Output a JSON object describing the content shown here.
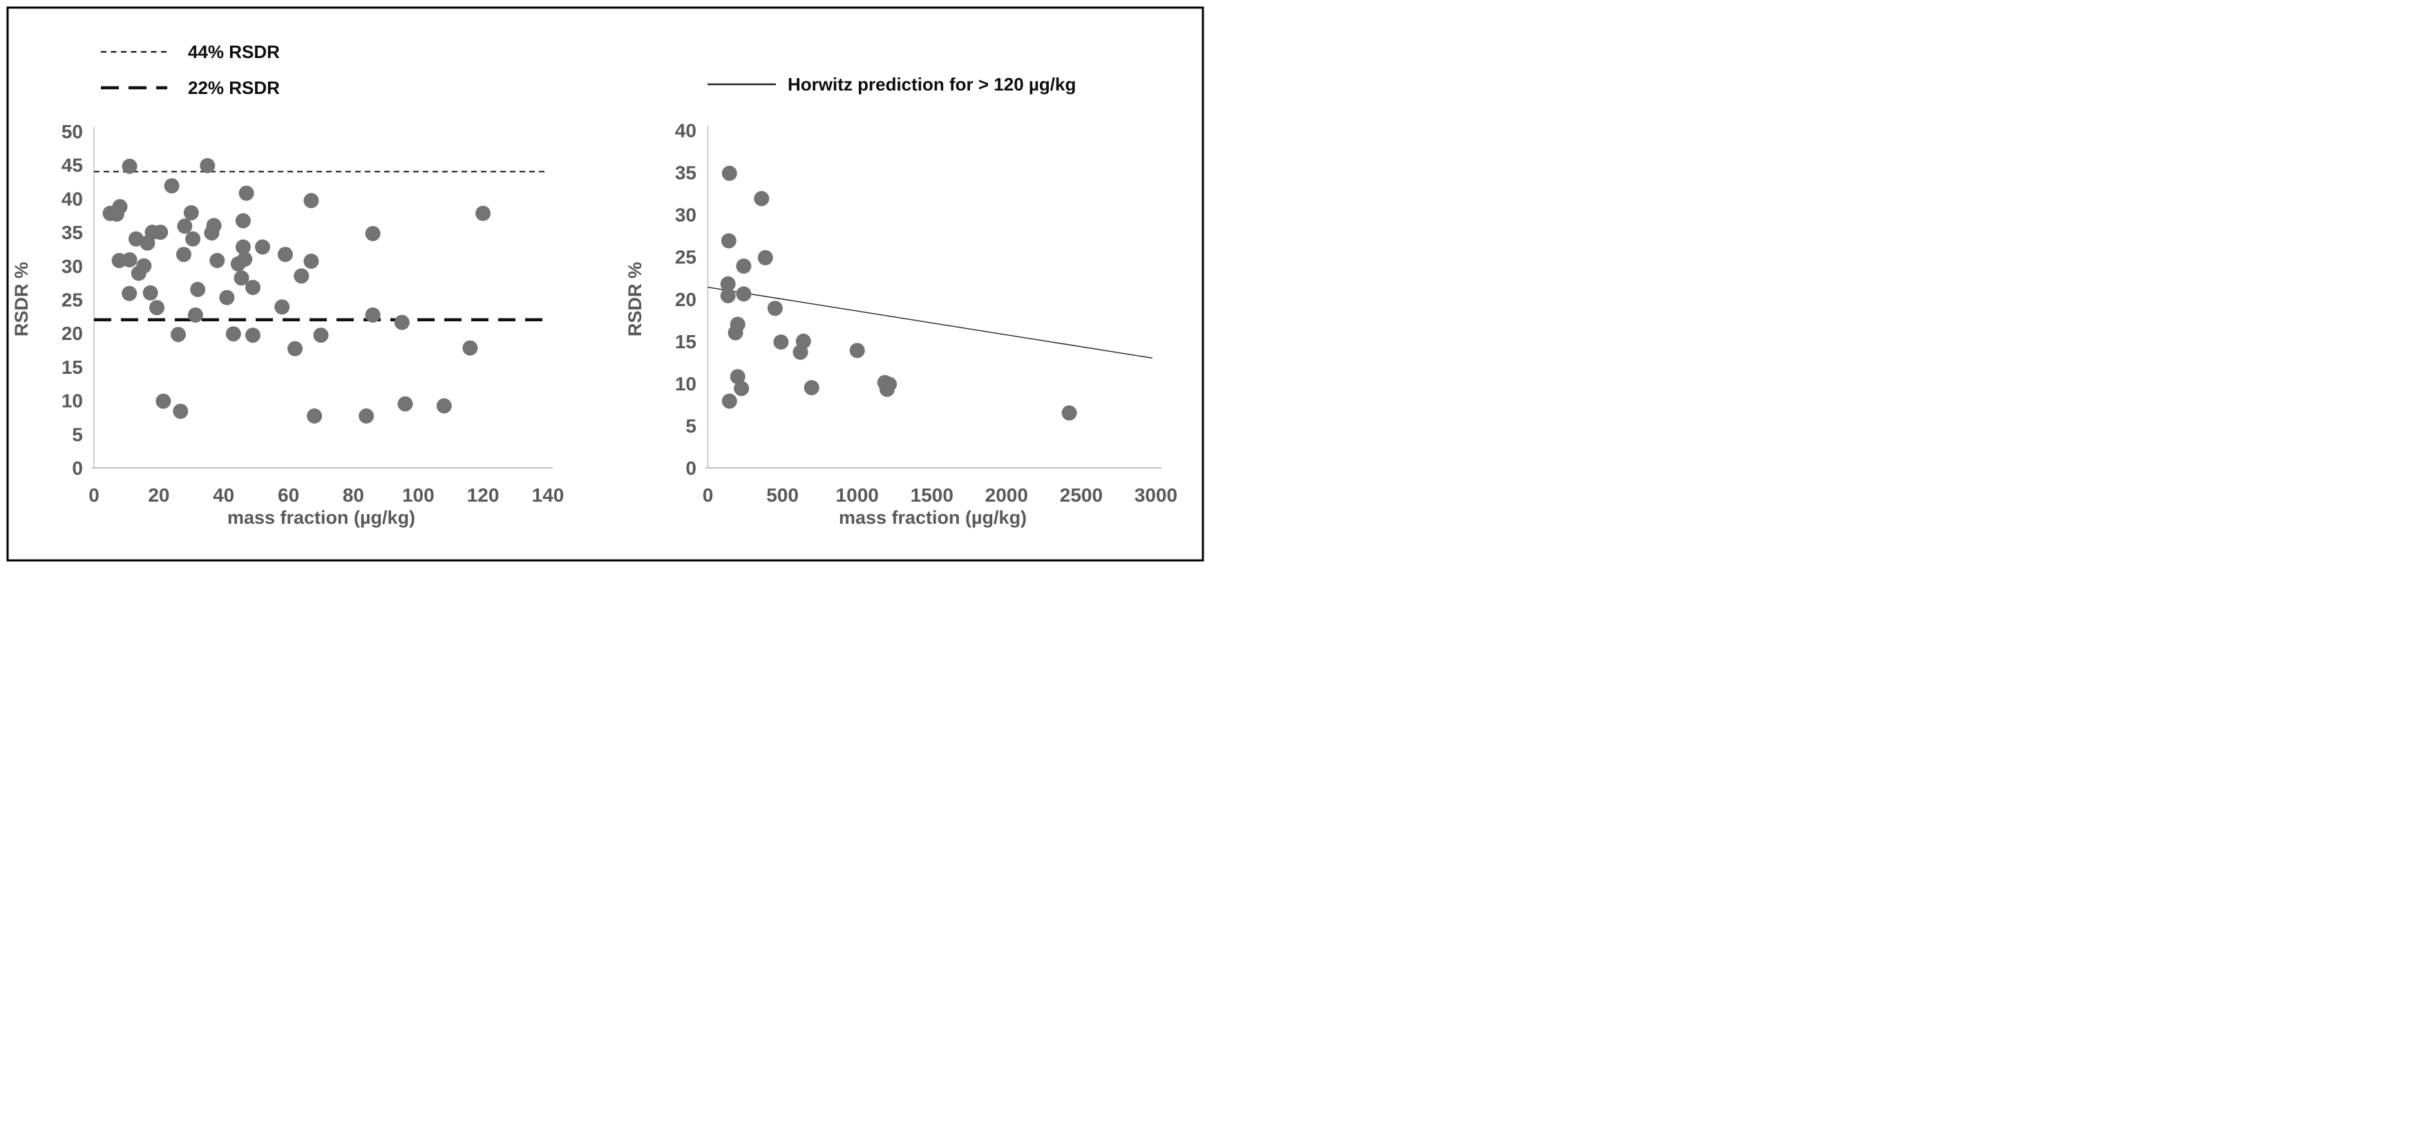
{
  "figure": {
    "background": "#ffffff",
    "border_color": "#000000"
  },
  "colors": {
    "marker": "#737373",
    "axis_line": "#bfbfbf",
    "tick_label": "#595959",
    "reference_line": "#111111",
    "trend_line": "#222222",
    "legend_text": "#0d0d0d"
  },
  "left_legend": {
    "items": [
      {
        "label": "44% RSDR",
        "line_style": "fine-dash"
      },
      {
        "label": "22% RSDR",
        "line_style": "long-dash"
      }
    ]
  },
  "right_legend": {
    "label": "Horwitz prediction for > 120 µg/kg",
    "line_style": "solid-thin"
  },
  "chart_data": [
    {
      "id": "left-scatter",
      "type": "scatter",
      "title": "",
      "xlabel": "mass fraction (µg/kg)",
      "ylabel": "RSDR %",
      "xlim": [
        0,
        140
      ],
      "ylim": [
        0,
        50
      ],
      "xticks": [
        0,
        20,
        40,
        60,
        80,
        100,
        120,
        140
      ],
      "yticks": [
        0,
        5,
        10,
        15,
        20,
        25,
        30,
        35,
        40,
        45,
        50
      ],
      "grid": false,
      "legend_position": "top-left",
      "reference_lines": [
        {
          "label": "44% RSDR",
          "y": 44,
          "style": "fine-dash"
        },
        {
          "label": "22% RSDR",
          "y": 22,
          "style": "long-dash"
        }
      ],
      "points": [
        [
          5,
          37.8
        ],
        [
          7,
          37.7
        ],
        [
          8,
          38.8
        ],
        [
          11,
          44.8
        ],
        [
          35,
          44.9
        ],
        [
          24,
          41.9
        ],
        [
          47,
          40.8
        ],
        [
          30,
          37.9
        ],
        [
          67,
          39.7
        ],
        [
          120,
          37.8
        ],
        [
          46,
          36.7
        ],
        [
          28,
          35.9
        ],
        [
          37,
          36.0
        ],
        [
          18,
          35.0
        ],
        [
          20.5,
          35.0
        ],
        [
          13,
          34.0
        ],
        [
          16.5,
          33.4
        ],
        [
          30.5,
          34.0
        ],
        [
          36.3,
          34.9
        ],
        [
          86,
          34.8
        ],
        [
          46,
          32.8
        ],
        [
          52,
          32.8
        ],
        [
          27.7,
          31.7
        ],
        [
          59,
          31.7
        ],
        [
          7.8,
          30.8
        ],
        [
          11,
          30.9
        ],
        [
          15.4,
          30.0
        ],
        [
          38,
          30.8
        ],
        [
          44.5,
          30.3
        ],
        [
          46.5,
          31.0
        ],
        [
          67,
          30.7
        ],
        [
          13.8,
          28.9
        ],
        [
          45.5,
          28.2
        ],
        [
          64,
          28.5
        ],
        [
          49,
          26.8
        ],
        [
          32,
          26.5
        ],
        [
          10.9,
          25.9
        ],
        [
          17.4,
          26.0
        ],
        [
          41,
          25.3
        ],
        [
          19.4,
          23.8
        ],
        [
          31.3,
          22.7
        ],
        [
          58,
          23.9
        ],
        [
          86,
          22.7
        ],
        [
          95,
          21.6
        ],
        [
          26,
          19.8
        ],
        [
          43,
          19.9
        ],
        [
          49,
          19.7
        ],
        [
          70,
          19.7
        ],
        [
          62,
          17.7
        ],
        [
          116,
          17.8
        ],
        [
          21.4,
          9.9
        ],
        [
          26.7,
          8.4
        ],
        [
          96,
          9.5
        ],
        [
          108,
          9.2
        ],
        [
          68,
          7.7
        ],
        [
          84,
          7.7
        ]
      ]
    },
    {
      "id": "right-scatter",
      "type": "scatter",
      "title": "",
      "xlabel": "mass fraction (µg/kg)",
      "ylabel": "RSDR %",
      "xlim": [
        0,
        3000
      ],
      "ylim": [
        0,
        40
      ],
      "xticks": [
        0,
        500,
        1000,
        1500,
        2000,
        2500,
        3000
      ],
      "yticks": [
        0,
        5,
        10,
        15,
        20,
        25,
        30,
        35,
        40
      ],
      "grid": false,
      "legend_position": "top",
      "trend_line": {
        "label": "Horwitz prediction for > 120 µg/kg",
        "x": [
          0,
          3000
        ],
        "y": [
          21.4,
          13.0
        ]
      },
      "points": [
        [
          145,
          34.9
        ],
        [
          360,
          31.9
        ],
        [
          140,
          26.9
        ],
        [
          385,
          24.9
        ],
        [
          240,
          23.9
        ],
        [
          135,
          21.8
        ],
        [
          240,
          20.6
        ],
        [
          135,
          20.4
        ],
        [
          450,
          18.9
        ],
        [
          200,
          17.0
        ],
        [
          185,
          16.0
        ],
        [
          490,
          14.9
        ],
        [
          640,
          15.0
        ],
        [
          620,
          13.7
        ],
        [
          1000,
          13.9
        ],
        [
          200,
          10.8
        ],
        [
          225,
          9.4
        ],
        [
          695,
          9.5
        ],
        [
          1185,
          10.1
        ],
        [
          1215,
          9.9
        ],
        [
          1200,
          9.3
        ],
        [
          145,
          7.9
        ],
        [
          2420,
          6.5
        ]
      ]
    }
  ]
}
